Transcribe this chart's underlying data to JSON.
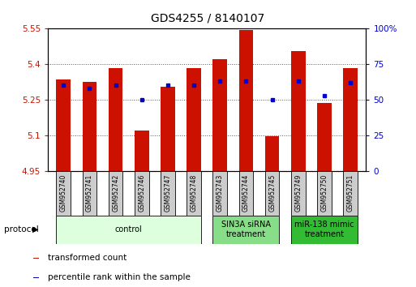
{
  "title": "GDS4255 / 8140107",
  "samples": [
    "GSM952740",
    "GSM952741",
    "GSM952742",
    "GSM952746",
    "GSM952747",
    "GSM952748",
    "GSM952743",
    "GSM952744",
    "GSM952745",
    "GSM952749",
    "GSM952750",
    "GSM952751"
  ],
  "transformed_count": [
    5.335,
    5.325,
    5.385,
    5.12,
    5.305,
    5.385,
    5.42,
    5.545,
    5.095,
    5.455,
    5.235,
    5.385
  ],
  "percentile_rank": [
    60,
    58,
    60,
    50,
    60,
    60,
    63,
    63,
    50,
    63,
    53,
    62
  ],
  "ylim_left": [
    4.95,
    5.55
  ],
  "ylim_right": [
    0,
    100
  ],
  "yticks_left": [
    4.95,
    5.1,
    5.25,
    5.4,
    5.55
  ],
  "yticks_right": [
    0,
    25,
    50,
    75,
    100
  ],
  "ytick_labels_left": [
    "4.95",
    "5.1",
    "5.25",
    "5.4",
    "5.55"
  ],
  "ytick_labels_right": [
    "0",
    "25",
    "50",
    "75",
    "100%"
  ],
  "bar_color": "#cc1100",
  "dot_color": "#0000cc",
  "bar_width": 0.55,
  "base_value": 4.95,
  "groups": [
    {
      "label": "control",
      "start": 0,
      "end": 5,
      "color": "#ddffdd"
    },
    {
      "label": "SIN3A siRNA\ntreatment",
      "start": 6,
      "end": 8,
      "color": "#88dd88"
    },
    {
      "label": "miR-138 mimic\ntreatment",
      "start": 9,
      "end": 11,
      "color": "#33bb33"
    }
  ],
  "legend_items": [
    {
      "label": "transformed count",
      "color": "#cc1100"
    },
    {
      "label": "percentile rank within the sample",
      "color": "#0000cc"
    }
  ],
  "protocol_label": "protocol",
  "background_color": "#ffffff",
  "plot_bg_color": "#ffffff",
  "grid_color": "#555555",
  "title_fontsize": 10,
  "tick_fontsize": 7.5,
  "sample_fontsize": 5.5,
  "group_fontsize": 7,
  "legend_fontsize": 7.5
}
